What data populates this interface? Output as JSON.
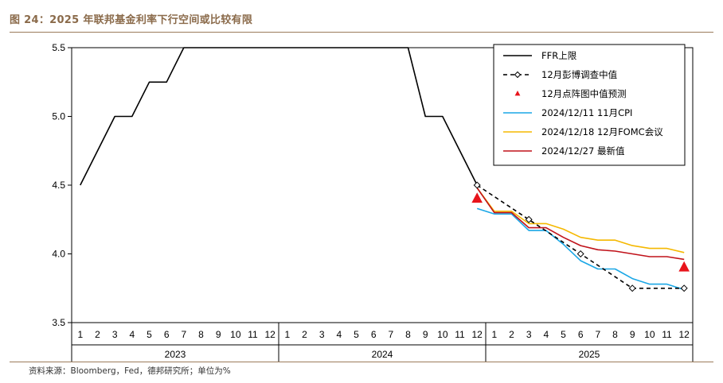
{
  "header": {
    "title": "图 24：2025 年联邦基金利率下行空间或比较有限"
  },
  "footer": {
    "source": "资料来源：Bloomberg，Fed，德邦研究所；单位为%"
  },
  "colors": {
    "ffr": "#000000",
    "survey": "#000000",
    "dot": "#e8141b",
    "cpi": "#1aa7e6",
    "fomc": "#f5b800",
    "latest": "#c0121a",
    "accent": "#9b7b5b"
  },
  "chart_data": {
    "type": "line",
    "title": "",
    "xlabel": "",
    "ylabel": "",
    "ylim": [
      3.5,
      5.5
    ],
    "yticks": [
      "3.5",
      "4.0",
      "4.5",
      "5.0",
      "5.5"
    ],
    "grid": false,
    "legend_position": "top-right",
    "x_month_labels": [
      "1",
      "2",
      "3",
      "4",
      "5",
      "6",
      "7",
      "8",
      "9",
      "10",
      "11",
      "12",
      "1",
      "2",
      "3",
      "4",
      "5",
      "6",
      "7",
      "8",
      "9",
      "10",
      "11",
      "12",
      "1",
      "2",
      "3",
      "4",
      "5",
      "6",
      "7",
      "8",
      "9",
      "10",
      "11",
      "12"
    ],
    "x_year_labels": [
      "2023",
      "2024",
      "2025"
    ],
    "series": [
      {
        "name": "FFR上限",
        "style": "solid",
        "points": [
          [
            1,
            4.5
          ],
          [
            3,
            5.0
          ],
          [
            4,
            5.0
          ],
          [
            5,
            5.25
          ],
          [
            6,
            5.25
          ],
          [
            7,
            5.5
          ],
          [
            20,
            5.5
          ],
          [
            21,
            5.0
          ],
          [
            22,
            5.0
          ],
          [
            24,
            4.5
          ]
        ]
      },
      {
        "name": "12月彭博调查中值",
        "style": "dashed-diamond",
        "points": [
          [
            24,
            4.5
          ],
          [
            27,
            4.25
          ],
          [
            30,
            4.0
          ],
          [
            33,
            3.75
          ],
          [
            36,
            3.75
          ]
        ]
      },
      {
        "name": "12月点阵图中值预测",
        "style": "triangle",
        "points": [
          [
            24,
            4.4
          ],
          [
            36,
            3.9
          ]
        ]
      },
      {
        "name": "2024/12/11 11月CPI",
        "style": "solid",
        "points": [
          [
            24,
            4.33
          ],
          [
            25,
            4.29
          ],
          [
            26,
            4.29
          ],
          [
            27,
            4.17
          ],
          [
            28,
            4.17
          ],
          [
            29,
            4.07
          ],
          [
            30,
            3.95
          ],
          [
            31,
            3.89
          ],
          [
            32,
            3.89
          ],
          [
            33,
            3.82
          ],
          [
            34,
            3.78
          ],
          [
            35,
            3.78
          ],
          [
            36,
            3.74
          ]
        ]
      },
      {
        "name": "2024/12/18 12月FOMC会议",
        "style": "solid",
        "points": [
          [
            24,
            4.48
          ],
          [
            25,
            4.31
          ],
          [
            26,
            4.31
          ],
          [
            27,
            4.22
          ],
          [
            28,
            4.22
          ],
          [
            29,
            4.18
          ],
          [
            30,
            4.12
          ],
          [
            31,
            4.1
          ],
          [
            32,
            4.1
          ],
          [
            33,
            4.06
          ],
          [
            34,
            4.04
          ],
          [
            35,
            4.04
          ],
          [
            36,
            4.01
          ]
        ]
      },
      {
        "name": "2024/12/27 最新值",
        "style": "solid",
        "points": [
          [
            24,
            4.48
          ],
          [
            25,
            4.3
          ],
          [
            26,
            4.3
          ],
          [
            27,
            4.19
          ],
          [
            28,
            4.19
          ],
          [
            29,
            4.12
          ],
          [
            30,
            4.06
          ],
          [
            31,
            4.03
          ],
          [
            32,
            4.02
          ],
          [
            33,
            4.0
          ],
          [
            34,
            3.98
          ],
          [
            35,
            3.98
          ],
          [
            36,
            3.96
          ]
        ]
      }
    ]
  }
}
